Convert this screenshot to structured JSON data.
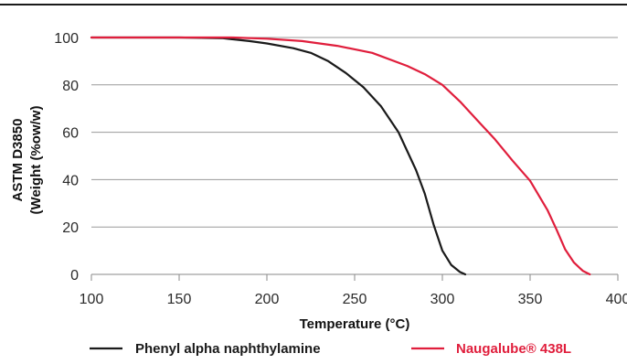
{
  "chart_data": {
    "type": "line",
    "xlabel": "Temperature (°C)",
    "ylabel_lines": [
      "ASTM D3850",
      "(Weight (%ow/w)"
    ],
    "xlim": [
      100,
      400
    ],
    "ylim": [
      0,
      100
    ],
    "x_ticks": [
      100,
      150,
      200,
      250,
      300,
      350,
      400
    ],
    "y_ticks": [
      0,
      20,
      40,
      60,
      80,
      100
    ],
    "grid": "horizontal",
    "legend_position": "bottom",
    "series": [
      {
        "name": "Phenyl alpha naphthylamine",
        "color": "#1a1a1a",
        "points": [
          [
            100,
            100
          ],
          [
            150,
            100
          ],
          [
            175,
            99.7
          ],
          [
            190,
            98.5
          ],
          [
            200,
            97.5
          ],
          [
            215,
            95.5
          ],
          [
            225,
            93.5
          ],
          [
            235,
            90
          ],
          [
            245,
            85
          ],
          [
            255,
            79
          ],
          [
            265,
            71
          ],
          [
            275,
            60
          ],
          [
            285,
            44
          ],
          [
            290,
            34
          ],
          [
            295,
            21
          ],
          [
            300,
            10
          ],
          [
            305,
            4
          ],
          [
            310,
            1
          ],
          [
            313,
            0
          ]
        ]
      },
      {
        "name": "Naugalube® 438L",
        "color": "#e01e3c",
        "points": [
          [
            100,
            100
          ],
          [
            150,
            100
          ],
          [
            180,
            100
          ],
          [
            200,
            99.5
          ],
          [
            220,
            98.5
          ],
          [
            240,
            96.5
          ],
          [
            260,
            93.5
          ],
          [
            280,
            88
          ],
          [
            290,
            84.5
          ],
          [
            300,
            80
          ],
          [
            310,
            73
          ],
          [
            320,
            65
          ],
          [
            330,
            57
          ],
          [
            340,
            48
          ],
          [
            350,
            39.5
          ],
          [
            360,
            27
          ],
          [
            365,
            19
          ],
          [
            370,
            10.5
          ],
          [
            375,
            5
          ],
          [
            380,
            1.5
          ],
          [
            384,
            0
          ]
        ]
      }
    ]
  }
}
